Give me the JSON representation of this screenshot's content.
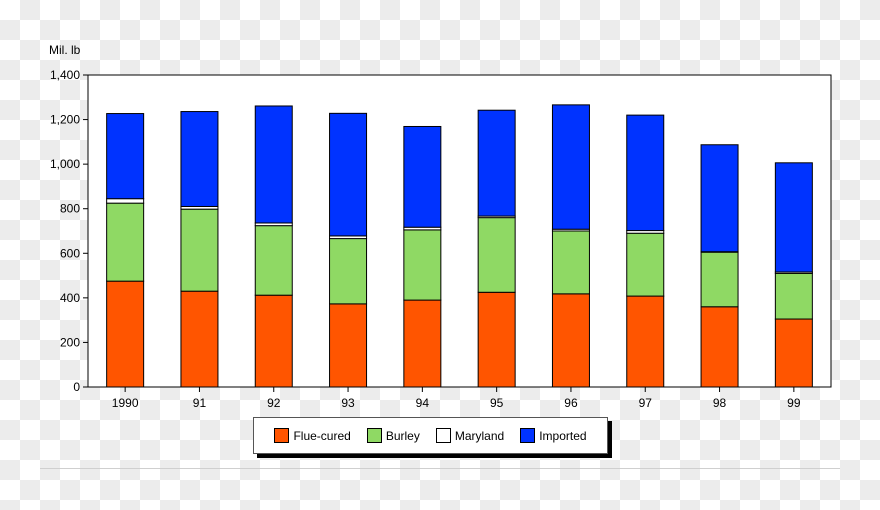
{
  "chart_data": {
    "type": "bar",
    "stacked": true,
    "ylabel": "Mil. lb",
    "ylim": [
      0,
      1400
    ],
    "yticks": [
      "0",
      "200",
      "400",
      "600",
      "800",
      "1,000",
      "1,200",
      "1,400"
    ],
    "categories": [
      "1990",
      "91",
      "92",
      "93",
      "94",
      "95",
      "96",
      "97",
      "98",
      "99"
    ],
    "series": [
      {
        "name": "Flue-cured",
        "color": "#ff5500",
        "values": [
          475,
          430,
          412,
          373,
          390,
          425,
          418,
          408,
          360,
          305
        ]
      },
      {
        "name": "Burley",
        "color": "#8fd964",
        "values": [
          350,
          368,
          312,
          293,
          315,
          335,
          282,
          282,
          245,
          205
        ]
      },
      {
        "name": "Maryland",
        "color": "#ffffff",
        "values": [
          20,
          12,
          12,
          12,
          12,
          7,
          8,
          12,
          2,
          6
        ]
      },
      {
        "name": "Imported",
        "color": "#0033ff",
        "values": [
          382,
          426,
          525,
          550,
          452,
          475,
          558,
          518,
          480,
          490
        ]
      }
    ],
    "legend_position": "bottom",
    "grid": false
  }
}
